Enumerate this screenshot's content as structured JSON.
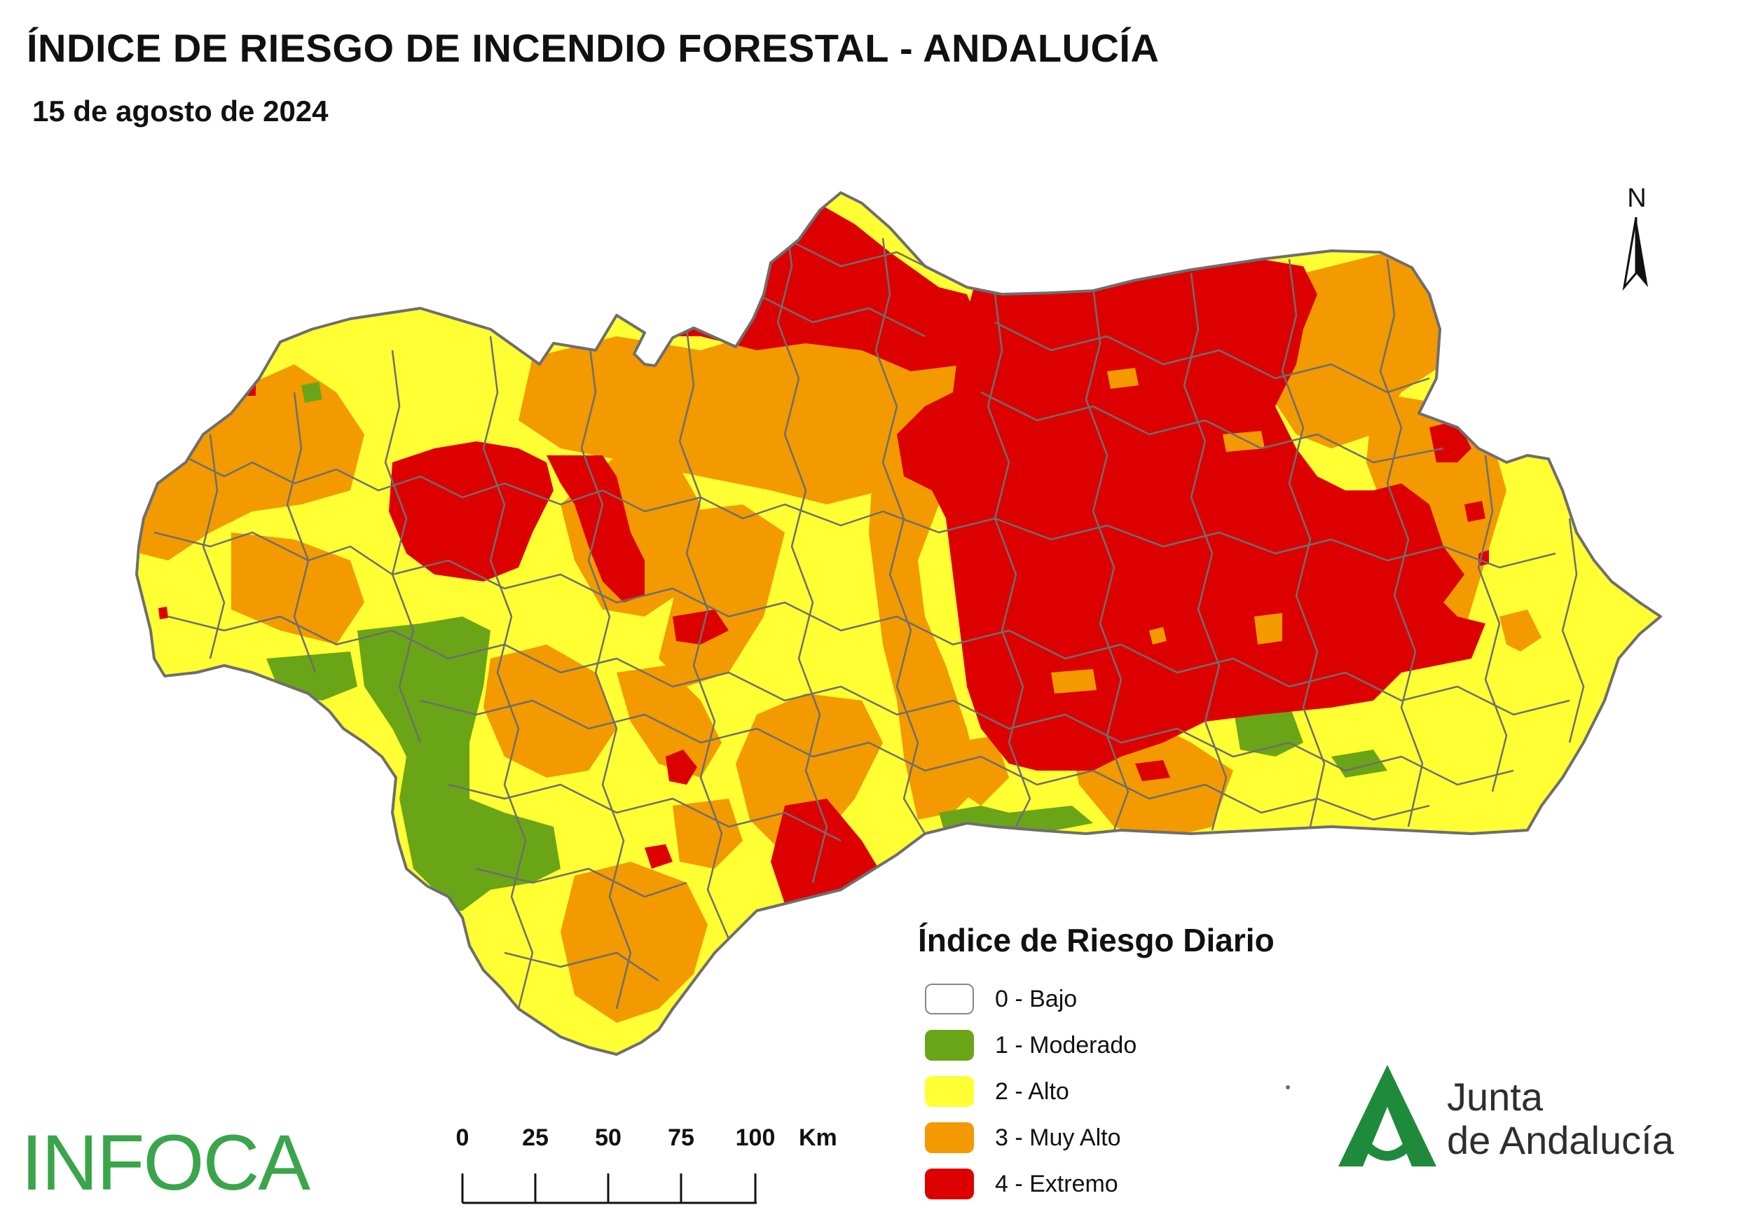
{
  "title": "ÍNDICE DE RIESGO DE INCENDIO FORESTAL - ANDALUCÍA",
  "date": "15 de agosto de 2024",
  "north_label": "N",
  "legend": {
    "title": "Índice de Riesgo Diario",
    "items": [
      {
        "label": "0 - Bajo",
        "color": "#ffffff"
      },
      {
        "label": "1 - Moderado",
        "color": "#6aa517"
      },
      {
        "label": "2 - Alto",
        "color": "#ffff33"
      },
      {
        "label": "3 - Muy Alto",
        "color": "#f29a00"
      },
      {
        "label": "4 - Extremo",
        "color": "#dd0000"
      }
    ]
  },
  "scale_bar": {
    "ticks": [
      "0",
      "25",
      "50",
      "75",
      "100"
    ],
    "unit": "Km"
  },
  "infoca_logo": "INFOCA",
  "junta_logo": {
    "line1": "Junta",
    "line2": "de Andalucía"
  },
  "colors": {
    "moderado": "#6aa517",
    "alto": "#ffff33",
    "muy_alto": "#f29a00",
    "extremo": "#dd0000",
    "boundary": "#6e6e6e",
    "logo_green": "#3aa54a",
    "junta_green": "#1e8a3c"
  }
}
